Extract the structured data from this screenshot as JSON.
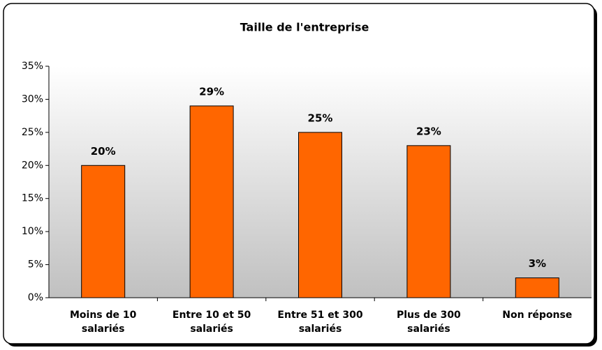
{
  "chart_data": {
    "type": "bar",
    "title": "Taille de l'entreprise",
    "categories": [
      "Moins de 10 salariés",
      "Entre 10 et 50 salariés",
      "Entre 51 et 300 salariés",
      "Plus de 300 salariés",
      "Non réponse"
    ],
    "values": [
      20,
      29,
      25,
      23,
      3
    ],
    "value_labels": [
      "20%",
      "29%",
      "25%",
      "23%",
      "3%"
    ],
    "color": "#ff6600",
    "ylim": [
      0,
      35
    ],
    "yticks": [
      {
        "value": 0,
        "label": "0%"
      },
      {
        "value": 5,
        "label": "5%"
      },
      {
        "value": 10,
        "label": "10%"
      },
      {
        "value": 15,
        "label": "15%"
      },
      {
        "value": 20,
        "label": "20%"
      },
      {
        "value": 25,
        "label": "25%"
      },
      {
        "value": 30,
        "label": "30%"
      },
      {
        "value": 35,
        "label": "35%"
      }
    ],
    "grid": false
  }
}
